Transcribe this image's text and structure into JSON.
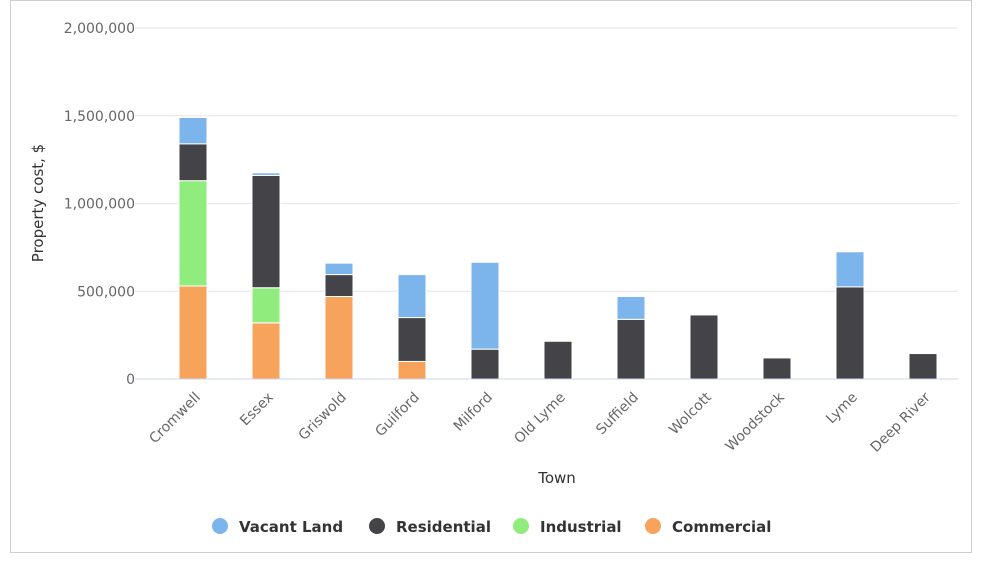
{
  "chart_data": {
    "type": "bar",
    "stacked": true,
    "xlabel": "Town",
    "ylabel": "Property cost, $",
    "ylim": [
      0,
      2000000
    ],
    "yticks": [
      0,
      500000,
      1000000,
      1500000,
      2000000
    ],
    "ytick_labels": [
      "0",
      "500,000",
      "1,000,000",
      "1,500,000",
      "2,000,000"
    ],
    "grid": true,
    "legend_position": "bottom",
    "categories": [
      "Cromwell",
      "Essex",
      "Griswold",
      "Guilford",
      "Milford",
      "Old Lyme",
      "Suffield",
      "Wolcott",
      "Woodstock",
      "Lyme",
      "Deep River"
    ],
    "series": [
      {
        "name": "Commercial",
        "color": "#f7a35c",
        "values": [
          530000,
          320000,
          470000,
          100000,
          0,
          0,
          0,
          0,
          0,
          0,
          0
        ]
      },
      {
        "name": "Industrial",
        "color": "#90ed7d",
        "values": [
          600000,
          200000,
          0,
          0,
          0,
          0,
          0,
          0,
          0,
          0,
          0
        ]
      },
      {
        "name": "Residential",
        "color": "#434348",
        "values": [
          210000,
          640000,
          125000,
          250000,
          170000,
          215000,
          340000,
          365000,
          120000,
          525000,
          145000
        ]
      },
      {
        "name": "Vacant Land",
        "color": "#7cb5ec",
        "values": [
          150000,
          15000,
          65000,
          245000,
          495000,
          0,
          130000,
          0,
          0,
          200000,
          0
        ]
      }
    ],
    "legend_order": [
      "Vacant Land",
      "Residential",
      "Industrial",
      "Commercial"
    ]
  }
}
